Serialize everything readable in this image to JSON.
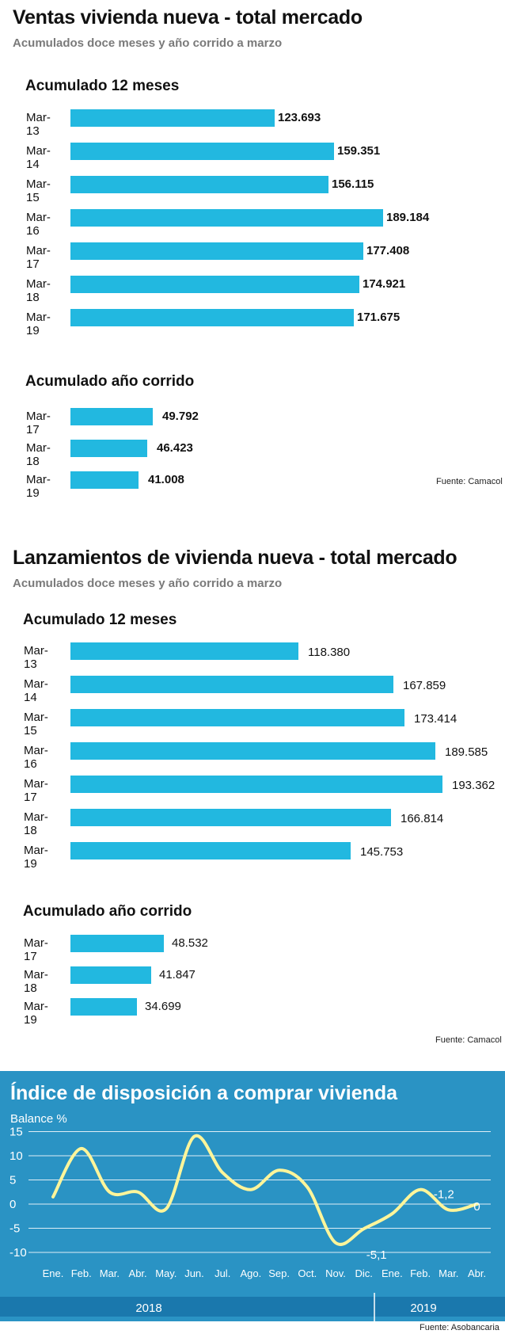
{
  "panel1": {
    "title": "Ventas vivienda nueva - total mercado",
    "subtitle": "Acumulados doce meses y año corrido a marzo",
    "source": "Fuente: Camacol"
  },
  "panel2": {
    "title": "Lanzamientos de vivienda nueva - total mercado",
    "subtitle": "Acumulados doce meses y año corrido a marzo",
    "source": "Fuente: Camacol"
  },
  "panel3": {
    "title": "Índice de disposición a comprar vivienda",
    "subtitle": "Balance %",
    "source": "Fuente: Asobancaria",
    "colors": {
      "background": "#2a93c4",
      "year_band": "#1a78ad",
      "line": "#fff59a",
      "grid": "#ffffff"
    }
  },
  "colors": {
    "bar": "#22b8e0"
  },
  "chart_data": [
    {
      "type": "bar",
      "title": "Acumulado 12 meses",
      "categories": [
        "Mar-13",
        "Mar-14",
        "Mar-15",
        "Mar-16",
        "Mar-17",
        "Mar-18",
        "Mar-19"
      ],
      "values": [
        123693,
        159351,
        156115,
        189184,
        177408,
        174921,
        171675
      ],
      "labels": [
        "123.693",
        "159.351",
        "156.115",
        "189.184",
        "177.408",
        "174.921",
        "171.675"
      ]
    },
    {
      "type": "bar",
      "title": "Acumulado año corrido",
      "categories": [
        "Mar-17",
        "Mar-18",
        "Mar-19"
      ],
      "values": [
        49792,
        46423,
        41008
      ],
      "labels": [
        "49.792",
        "46.423",
        "41.008"
      ]
    },
    {
      "type": "bar",
      "title": "Acumulado 12 meses",
      "categories": [
        "Mar-13",
        "Mar-14",
        "Mar-15",
        "Mar-16",
        "Mar-17",
        "Mar-18",
        "Mar-19"
      ],
      "values": [
        118380,
        167859,
        173414,
        189585,
        193362,
        166814,
        145753
      ],
      "labels": [
        "118.380",
        "167.859",
        "173.414",
        "189.585",
        "193.362",
        "166.814",
        "145.753"
      ]
    },
    {
      "type": "bar",
      "title": "Acumulado año corrido",
      "categories": [
        "Mar-17",
        "Mar-18",
        "Mar-19"
      ],
      "values": [
        48532,
        41847,
        34699
      ],
      "labels": [
        "48.532",
        "41.847",
        "34.699"
      ]
    },
    {
      "type": "line",
      "xlabels": [
        "Ene.",
        "Feb.",
        "Mar.",
        "Abr.",
        "May.",
        "Jun.",
        "Jul.",
        "Ago.",
        "Sep.",
        "Oct.",
        "Nov.",
        "Dic.",
        "Ene.",
        "Feb.",
        "Mar.",
        "Abr."
      ],
      "year_labels": [
        "2018",
        "2019"
      ],
      "yticks": [
        "15",
        "10",
        "5",
        "0",
        "-5",
        "-10"
      ],
      "ylim": [
        -10,
        15
      ],
      "grid": true,
      "series": [
        {
          "values": [
            1.5,
            11.5,
            2.5,
            2.5,
            -1.0,
            14.0,
            6.5,
            3.0,
            7.0,
            3.5,
            -8.0,
            -5.1,
            -2.0,
            3.0,
            -1.2,
            0
          ]
        }
      ],
      "annotations": [
        "-5,1",
        "-1,2",
        "0"
      ]
    }
  ]
}
